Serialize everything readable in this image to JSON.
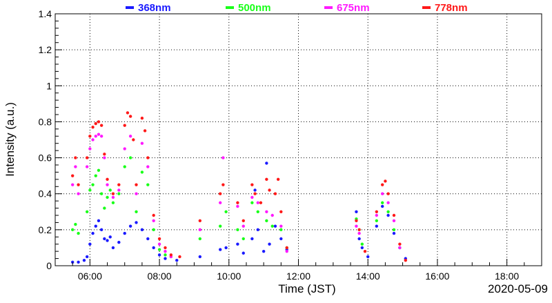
{
  "chart_data": {
    "type": "scatter",
    "title": "",
    "xlabel": "Time (JST)",
    "ylabel": "Intensity (a.u.)",
    "date_label": "2020-05-09",
    "xlim": [
      "05:00",
      "19:00"
    ],
    "ylim": [
      0,
      1.4
    ],
    "grid": true,
    "legend_position": "top",
    "x_ticks": [
      "06:00",
      "08:00",
      "10:00",
      "12:00",
      "14:00",
      "16:00",
      "18:00"
    ],
    "y_ticks": [
      "0",
      "0.2",
      "0.4",
      "0.6",
      "0.8",
      "1",
      "1.2",
      "1.4"
    ],
    "series": [
      {
        "name": "368nm",
        "color": "#1a1aff",
        "points": [
          [
            "05:30",
            0.02
          ],
          [
            "05:40",
            0.02
          ],
          [
            "05:50",
            0.03
          ],
          [
            "05:55",
            0.05
          ],
          [
            "06:00",
            0.12
          ],
          [
            "06:05",
            0.18
          ],
          [
            "06:10",
            0.22
          ],
          [
            "06:15",
            0.25
          ],
          [
            "06:20",
            0.2
          ],
          [
            "06:25",
            0.15
          ],
          [
            "06:30",
            0.14
          ],
          [
            "06:35",
            0.16
          ],
          [
            "06:40",
            0.1
          ],
          [
            "06:50",
            0.13
          ],
          [
            "07:00",
            0.18
          ],
          [
            "07:10",
            0.22
          ],
          [
            "07:20",
            0.24
          ],
          [
            "07:30",
            0.2
          ],
          [
            "07:40",
            0.15
          ],
          [
            "07:50",
            0.1
          ],
          [
            "08:00",
            0.06
          ],
          [
            "08:10",
            0.04
          ],
          [
            "08:30",
            0.03
          ],
          [
            "09:10",
            0.05
          ],
          [
            "09:45",
            0.09
          ],
          [
            "09:55",
            0.1
          ],
          [
            "10:15",
            0.12
          ],
          [
            "10:25",
            0.07
          ],
          [
            "10:40",
            0.15
          ],
          [
            "10:45",
            0.42
          ],
          [
            "10:50",
            0.2
          ],
          [
            "11:00",
            0.08
          ],
          [
            "11:05",
            0.57
          ],
          [
            "11:10",
            0.12
          ],
          [
            "11:20",
            0.22
          ],
          [
            "11:30",
            0.15
          ],
          [
            "11:40",
            0.09
          ],
          [
            "13:40",
            0.3
          ],
          [
            "13:45",
            0.15
          ],
          [
            "13:50",
            0.1
          ],
          [
            "14:00",
            0.05
          ],
          [
            "14:15",
            0.22
          ],
          [
            "14:25",
            0.33
          ],
          [
            "14:35",
            0.28
          ],
          [
            "14:45",
            0.18
          ],
          [
            "14:55",
            0.1
          ],
          [
            "15:05",
            0.04
          ]
        ]
      },
      {
        "name": "500nm",
        "color": "#19ff19",
        "points": [
          [
            "05:30",
            0.2
          ],
          [
            "05:35",
            0.23
          ],
          [
            "05:40",
            0.18
          ],
          [
            "05:55",
            0.3
          ],
          [
            "06:00",
            0.42
          ],
          [
            "06:05",
            0.45
          ],
          [
            "06:10",
            0.5
          ],
          [
            "06:15",
            0.53
          ],
          [
            "06:20",
            0.4
          ],
          [
            "06:25",
            0.32
          ],
          [
            "06:30",
            0.38
          ],
          [
            "06:35",
            0.42
          ],
          [
            "06:40",
            0.35
          ],
          [
            "06:50",
            0.4
          ],
          [
            "07:00",
            0.55
          ],
          [
            "07:10",
            0.6
          ],
          [
            "07:20",
            0.3
          ],
          [
            "07:30",
            0.52
          ],
          [
            "07:40",
            0.45
          ],
          [
            "07:50",
            0.2
          ],
          [
            "08:00",
            0.09
          ],
          [
            "08:10",
            0.06
          ],
          [
            "08:20",
            0.05
          ],
          [
            "09:10",
            0.15
          ],
          [
            "09:45",
            0.22
          ],
          [
            "09:55",
            0.3
          ],
          [
            "10:15",
            0.2
          ],
          [
            "10:25",
            0.15
          ],
          [
            "10:40",
            0.35
          ],
          [
            "10:50",
            0.3
          ],
          [
            "11:05",
            0.25
          ],
          [
            "11:15",
            0.22
          ],
          [
            "11:30",
            0.2
          ],
          [
            "11:40",
            0.1
          ],
          [
            "13:40",
            0.26
          ],
          [
            "13:45",
            0.2
          ],
          [
            "13:50",
            0.12
          ],
          [
            "14:15",
            0.25
          ],
          [
            "14:25",
            0.35
          ],
          [
            "14:35",
            0.3
          ],
          [
            "14:45",
            0.2
          ],
          [
            "14:55",
            0.1
          ]
        ]
      },
      {
        "name": "675nm",
        "color": "#ff19ff",
        "points": [
          [
            "05:30",
            0.45
          ],
          [
            "05:35",
            0.55
          ],
          [
            "05:40",
            0.4
          ],
          [
            "05:55",
            0.55
          ],
          [
            "06:00",
            0.65
          ],
          [
            "06:05",
            0.7
          ],
          [
            "06:10",
            0.72
          ],
          [
            "06:15",
            0.73
          ],
          [
            "06:20",
            0.72
          ],
          [
            "06:25",
            0.6
          ],
          [
            "06:30",
            0.45
          ],
          [
            "06:40",
            0.38
          ],
          [
            "06:50",
            0.42
          ],
          [
            "07:00",
            0.65
          ],
          [
            "07:10",
            0.72
          ],
          [
            "07:20",
            0.4
          ],
          [
            "07:30",
            0.68
          ],
          [
            "07:40",
            0.55
          ],
          [
            "07:50",
            0.25
          ],
          [
            "08:00",
            0.12
          ],
          [
            "08:10",
            0.08
          ],
          [
            "08:20",
            0.05
          ],
          [
            "09:10",
            0.2
          ],
          [
            "09:45",
            0.35
          ],
          [
            "09:50",
            0.6
          ],
          [
            "10:15",
            0.33
          ],
          [
            "10:25",
            0.22
          ],
          [
            "10:40",
            0.38
          ],
          [
            "10:50",
            0.35
          ],
          [
            "11:05",
            0.3
          ],
          [
            "11:15",
            0.28
          ],
          [
            "11:30",
            0.22
          ],
          [
            "11:40",
            0.08
          ],
          [
            "13:40",
            0.22
          ],
          [
            "13:45",
            0.18
          ],
          [
            "14:15",
            0.28
          ],
          [
            "14:25",
            0.4
          ],
          [
            "14:35",
            0.35
          ],
          [
            "14:45",
            0.25
          ],
          [
            "14:55",
            0.1
          ]
        ]
      },
      {
        "name": "778nm",
        "color": "#ff1919",
        "points": [
          [
            "05:30",
            0.5
          ],
          [
            "05:35",
            0.6
          ],
          [
            "05:40",
            0.45
          ],
          [
            "05:55",
            0.6
          ],
          [
            "06:00",
            0.72
          ],
          [
            "06:05",
            0.77
          ],
          [
            "06:10",
            0.79
          ],
          [
            "06:15",
            0.8
          ],
          [
            "06:20",
            0.78
          ],
          [
            "06:25",
            0.62
          ],
          [
            "06:30",
            0.48
          ],
          [
            "06:40",
            0.4
          ],
          [
            "06:50",
            0.45
          ],
          [
            "07:00",
            0.78
          ],
          [
            "07:05",
            0.85
          ],
          [
            "07:10",
            0.83
          ],
          [
            "07:15",
            0.7
          ],
          [
            "07:20",
            0.45
          ],
          [
            "07:30",
            0.82
          ],
          [
            "07:35",
            0.75
          ],
          [
            "07:40",
            0.6
          ],
          [
            "07:50",
            0.28
          ],
          [
            "08:00",
            0.15
          ],
          [
            "08:10",
            0.1
          ],
          [
            "08:20",
            0.06
          ],
          [
            "08:35",
            0.05
          ],
          [
            "09:10",
            0.25
          ],
          [
            "09:45",
            0.4
          ],
          [
            "09:50",
            0.45
          ],
          [
            "10:15",
            0.35
          ],
          [
            "10:25",
            0.25
          ],
          [
            "10:40",
            0.45
          ],
          [
            "10:45",
            0.4
          ],
          [
            "10:55",
            0.35
          ],
          [
            "11:05",
            0.48
          ],
          [
            "11:10",
            0.42
          ],
          [
            "11:20",
            0.4
          ],
          [
            "11:25",
            0.48
          ],
          [
            "11:30",
            0.3
          ],
          [
            "11:40",
            0.1
          ],
          [
            "13:40",
            0.25
          ],
          [
            "13:45",
            0.2
          ],
          [
            "13:55",
            0.08
          ],
          [
            "14:15",
            0.3
          ],
          [
            "14:25",
            0.45
          ],
          [
            "14:30",
            0.47
          ],
          [
            "14:35",
            0.4
          ],
          [
            "14:45",
            0.28
          ],
          [
            "14:55",
            0.12
          ],
          [
            "15:05",
            0.03
          ]
        ]
      }
    ]
  }
}
